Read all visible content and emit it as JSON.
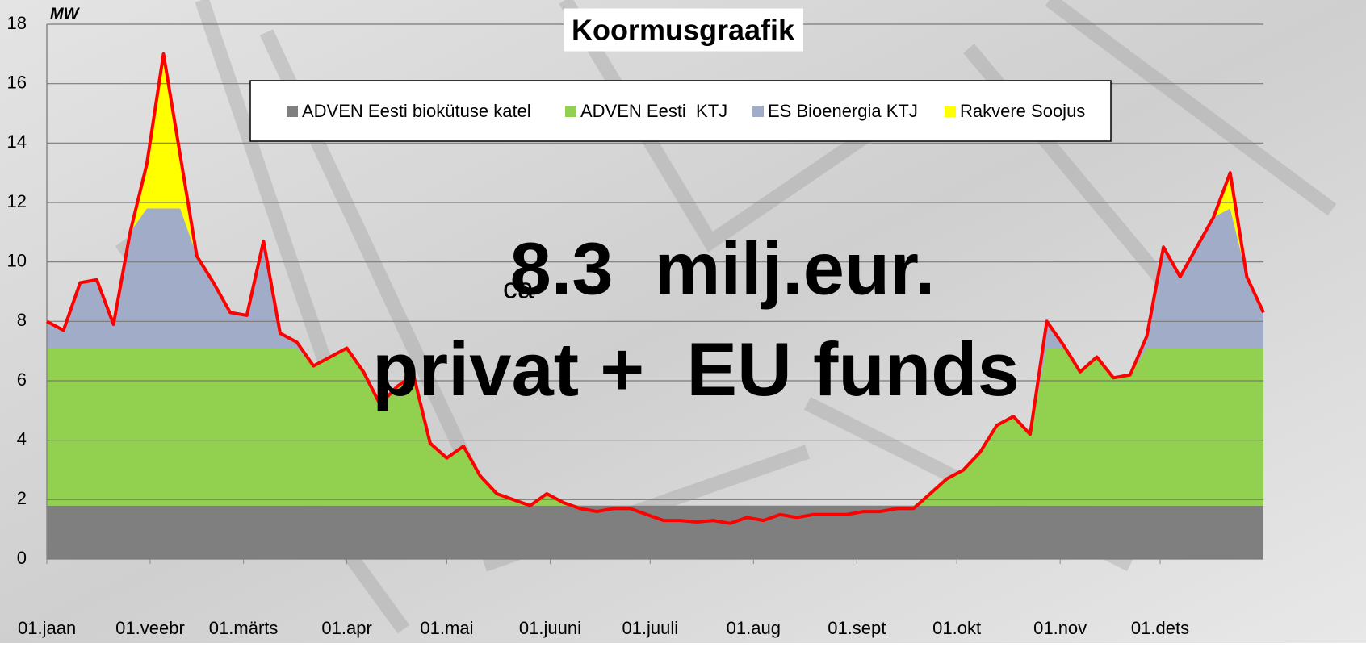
{
  "chart_data": {
    "type": "stacked_area",
    "title": "Koormusgraafik",
    "y_label": "MW",
    "annotations": [
      "ca",
      "8.3  milj.eur.",
      "privat +  EU funds"
    ],
    "x": [
      0,
      5,
      10,
      15,
      20,
      25,
      30,
      35,
      40,
      45,
      50,
      55,
      60,
      65,
      70,
      75,
      80,
      85,
      90,
      95,
      100,
      105,
      110,
      115,
      120,
      125,
      130,
      135,
      140,
      145,
      150,
      155,
      160,
      165,
      170,
      175,
      180,
      185,
      190,
      195,
      200,
      205,
      210,
      215,
      220,
      225,
      230,
      235,
      240,
      245,
      250,
      255,
      260,
      265,
      270,
      275,
      280,
      285,
      290,
      295,
      300,
      305,
      310,
      315,
      320,
      325,
      330,
      335,
      340,
      345,
      350,
      355,
      360,
      365
    ],
    "xlim": [
      0,
      365
    ],
    "xticks": [
      {
        "value": 0,
        "label": "01.jaan"
      },
      {
        "value": 31,
        "label": "01.veebr"
      },
      {
        "value": 59,
        "label": "01.märts"
      },
      {
        "value": 90,
        "label": "01.apr"
      },
      {
        "value": 120,
        "label": "01.mai"
      },
      {
        "value": 151,
        "label": "01.juuni"
      },
      {
        "value": 181,
        "label": "01.juuli"
      },
      {
        "value": 212,
        "label": "01.aug"
      },
      {
        "value": 243,
        "label": "01.sept"
      },
      {
        "value": 273,
        "label": "01.okt"
      },
      {
        "value": 304,
        "label": "01.nov"
      },
      {
        "value": 334,
        "label": "01.dets"
      }
    ],
    "ylim": [
      0,
      18
    ],
    "yticks": [
      0,
      2,
      4,
      6,
      8,
      10,
      12,
      14,
      16,
      18
    ],
    "grid": true,
    "legend": "top",
    "series": [
      {
        "name": "ADVEN Eesti biokütuse katel",
        "color": "#7f7f7f",
        "values": [
          1.8,
          1.8,
          1.8,
          1.8,
          1.8,
          1.8,
          1.8,
          1.8,
          1.8,
          1.8,
          1.8,
          1.8,
          1.8,
          1.8,
          1.8,
          1.8,
          1.8,
          1.8,
          1.8,
          1.8,
          1.8,
          1.8,
          1.8,
          1.8,
          1.8,
          1.8,
          1.8,
          1.8,
          1.8,
          1.8,
          1.8,
          1.8,
          1.8,
          1.8,
          1.8,
          1.8,
          1.8,
          1.8,
          1.8,
          1.8,
          1.8,
          1.8,
          1.8,
          1.8,
          1.8,
          1.8,
          1.8,
          1.8,
          1.8,
          1.8,
          1.8,
          1.8,
          1.8,
          1.8,
          1.8,
          1.8,
          1.8,
          1.8,
          1.8,
          1.8,
          1.8,
          1.8,
          1.8,
          1.8,
          1.8,
          1.8,
          1.8,
          1.8,
          1.8,
          1.8,
          1.8,
          1.8,
          1.8,
          1.8
        ]
      },
      {
        "name": "ADVEN Eesti  KTJ",
        "color": "#92d050",
        "values": [
          5.3,
          5.3,
          5.3,
          5.3,
          5.3,
          5.3,
          5.3,
          5.3,
          5.3,
          5.3,
          5.3,
          5.3,
          5.3,
          5.3,
          5.3,
          5.3,
          4.7,
          5.0,
          5.3,
          4.5,
          3.4,
          4.0,
          4.4,
          2.1,
          1.6,
          2.0,
          1.0,
          0.4,
          0.2,
          0,
          0.4,
          0.1,
          0,
          0,
          0,
          0,
          0,
          0,
          0,
          0,
          0,
          0,
          0,
          0,
          0,
          0,
          0,
          0,
          0,
          0,
          0,
          0,
          0,
          0.4,
          0.9,
          1.2,
          1.8,
          2.7,
          3.0,
          2.4,
          5.3,
          5.3,
          4.5,
          5.0,
          4.3,
          4.4,
          5.3,
          5.3,
          5.3,
          5.3,
          5.3,
          5.3,
          5.3,
          5.3
        ]
      },
      {
        "name": "ES Bioenergia KTJ",
        "color": "#a0acc8",
        "values": [
          0.9,
          0.6,
          2.2,
          2.3,
          0.8,
          3.9,
          4.7,
          4.7,
          4.7,
          3.1,
          2.2,
          1.2,
          1.1,
          3.6,
          0.5,
          0.2,
          0,
          0,
          0,
          0,
          0,
          0,
          0,
          0,
          0,
          0,
          0,
          0,
          0,
          0,
          0,
          0,
          0,
          0,
          0,
          0,
          0,
          0,
          0,
          0,
          0,
          0,
          0,
          0,
          0,
          0,
          0,
          0,
          0,
          0,
          0,
          0,
          0,
          0,
          0,
          0,
          0,
          0,
          0,
          0,
          0.9,
          0.1,
          0,
          0,
          0,
          0,
          0.4,
          3.4,
          2.4,
          3.4,
          4.4,
          4.7,
          2.4,
          1.2
        ]
      },
      {
        "name": "Rakvere Soojus",
        "color": "#ffff00",
        "values": [
          0,
          0,
          0,
          0,
          0,
          0,
          1.5,
          5.2,
          1.8,
          0,
          0,
          0,
          0,
          0,
          0,
          0,
          0,
          0,
          0,
          0,
          0,
          0,
          0,
          0,
          0,
          0,
          0,
          0,
          0,
          0,
          0,
          0,
          0,
          0,
          0,
          0,
          0,
          0,
          0,
          0,
          0,
          0,
          0,
          0,
          0,
          0,
          0,
          0,
          0,
          0,
          0,
          0,
          0,
          0,
          0,
          0,
          0,
          0,
          0,
          0,
          0,
          0,
          0,
          0,
          0,
          0,
          0,
          0,
          0,
          0,
          0,
          1.2,
          0,
          0
        ]
      }
    ],
    "load": {
      "color": "#ff0000",
      "values": [
        8.0,
        7.7,
        9.3,
        9.4,
        7.9,
        11.0,
        13.3,
        17.0,
        13.6,
        10.2,
        9.3,
        8.3,
        8.2,
        10.7,
        7.6,
        7.3,
        6.5,
        6.8,
        7.1,
        6.3,
        5.2,
        5.8,
        6.2,
        3.9,
        3.4,
        3.8,
        2.8,
        2.2,
        2.0,
        1.8,
        2.2,
        1.9,
        1.7,
        1.6,
        1.7,
        1.7,
        1.5,
        1.3,
        1.3,
        1.25,
        1.3,
        1.2,
        1.4,
        1.3,
        1.5,
        1.4,
        1.5,
        1.5,
        1.5,
        1.6,
        1.6,
        1.7,
        1.7,
        2.2,
        2.7,
        3.0,
        3.6,
        4.5,
        4.8,
        4.2,
        8.0,
        7.2,
        6.3,
        6.8,
        6.1,
        6.2,
        7.5,
        10.5,
        9.5,
        10.5,
        11.5,
        13.0,
        9.5,
        8.3
      ]
    }
  }
}
